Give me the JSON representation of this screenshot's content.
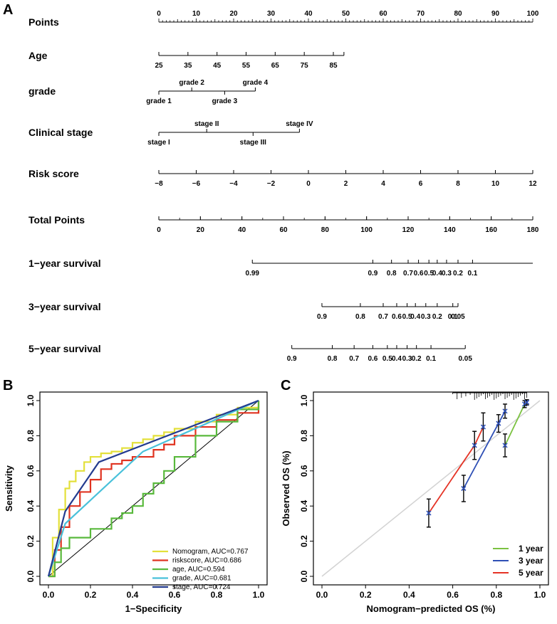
{
  "panel_labels": [
    "A",
    "B",
    "C"
  ],
  "chart_data": [
    {
      "type": "nomogram",
      "panel": "A",
      "points_range": [
        0,
        100
      ],
      "rows": [
        {
          "label": "Points",
          "kind": "points",
          "ticks": [
            {
              "t": "0",
              "v": 0
            },
            {
              "t": "10",
              "v": 10
            },
            {
              "t": "20",
              "v": 20
            },
            {
              "t": "30",
              "v": 30
            },
            {
              "t": "40",
              "v": 40
            },
            {
              "t": "50",
              "v": 50
            },
            {
              "t": "60",
              "v": 60
            },
            {
              "t": "70",
              "v": 70
            },
            {
              "t": "80",
              "v": 80
            },
            {
              "t": "90",
              "v": 90
            },
            {
              "t": "100",
              "v": 100
            }
          ]
        },
        {
          "label": "Age",
          "kind": "scale",
          "ticks": [
            {
              "t": "25",
              "v": 0
            },
            {
              "t": "35",
              "v": 7.78
            },
            {
              "t": "45",
              "v": 15.56
            },
            {
              "t": "55",
              "v": 23.33
            },
            {
              "t": "65",
              "v": 31.11
            },
            {
              "t": "75",
              "v": 38.89
            },
            {
              "t": "85",
              "v": 46.67
            }
          ],
          "axis_end": 49.5
        },
        {
          "label": "grade",
          "kind": "categorical",
          "ticks": [
            {
              "t": "grade 1",
              "v": 0,
              "pos": "below"
            },
            {
              "t": "grade 2",
              "v": 8.8,
              "pos": "above"
            },
            {
              "t": "grade 3",
              "v": 17.6,
              "pos": "below"
            },
            {
              "t": "grade 4",
              "v": 25.8,
              "pos": "above"
            }
          ]
        },
        {
          "label": "Clinical stage",
          "kind": "categorical",
          "ticks": [
            {
              "t": "stage I",
              "v": 0,
              "pos": "below"
            },
            {
              "t": "stage II",
              "v": 12.8,
              "pos": "above"
            },
            {
              "t": "stage III",
              "v": 25.2,
              "pos": "below"
            },
            {
              "t": "stage IV",
              "v": 37.6,
              "pos": "above"
            }
          ]
        },
        {
          "label": "Risk score",
          "kind": "scale",
          "ticks": [
            {
              "t": "−8",
              "v": 0
            },
            {
              "t": "−6",
              "v": 10
            },
            {
              "t": "−4",
              "v": 20
            },
            {
              "t": "−2",
              "v": 30
            },
            {
              "t": "0",
              "v": 40
            },
            {
              "t": "2",
              "v": 50
            },
            {
              "t": "4",
              "v": 60
            },
            {
              "t": "6",
              "v": 70
            },
            {
              "t": "8",
              "v": 80
            },
            {
              "t": "10",
              "v": 90
            },
            {
              "t": "12",
              "v": 100
            }
          ]
        },
        {
          "label": "Total Points",
          "kind": "total",
          "ticks": [
            {
              "t": "0",
              "v": 0
            },
            {
              "t": "20",
              "v": 20
            },
            {
              "t": "40",
              "v": 40
            },
            {
              "t": "60",
              "v": 60
            },
            {
              "t": "80",
              "v": 80
            },
            {
              "t": "100",
              "v": 100
            },
            {
              "t": "120",
              "v": 120
            },
            {
              "t": "140",
              "v": 140
            },
            {
              "t": "160",
              "v": 160
            },
            {
              "t": "180",
              "v": 180
            }
          ]
        },
        {
          "label": "1−year survival",
          "kind": "survival",
          "ticks": [
            {
              "t": "0.99",
              "v": 45
            },
            {
              "t": "0.9",
              "v": 103
            },
            {
              "t": "0.8",
              "v": 112
            },
            {
              "t": "0.7",
              "v": 120
            },
            {
              "t": "0.6",
              "v": 125
            },
            {
              "t": "0.5",
              "v": 130
            },
            {
              "t": "0.4",
              "v": 134
            },
            {
              "t": "0.3",
              "v": 138.5
            },
            {
              "t": "0.2",
              "v": 144
            },
            {
              "t": "0.1",
              "v": 151
            }
          ],
          "axis_end": 180
        },
        {
          "label": "3−year survival",
          "kind": "survival",
          "ticks": [
            {
              "t": "0.9",
              "v": 78.5
            },
            {
              "t": "0.8",
              "v": 97
            },
            {
              "t": "0.7",
              "v": 108
            },
            {
              "t": "0.6",
              "v": 114.5
            },
            {
              "t": "0.5",
              "v": 119.5
            },
            {
              "t": "0.4",
              "v": 123.5
            },
            {
              "t": "0.3",
              "v": 128.5
            },
            {
              "t": "0.2",
              "v": 134
            },
            {
              "t": "0.1",
              "v": 141.5
            },
            {
              "t": "0.05",
              "v": 144
            }
          ]
        },
        {
          "label": "5−year survival",
          "kind": "survival",
          "ticks": [
            {
              "t": "0.9",
              "v": 64
            },
            {
              "t": "0.8",
              "v": 83.5
            },
            {
              "t": "0.7",
              "v": 94
            },
            {
              "t": "0.6",
              "v": 103
            },
            {
              "t": "0.5",
              "v": 110
            },
            {
              "t": "0.4",
              "v": 114.5
            },
            {
              "t": "0.3",
              "v": 119.5
            },
            {
              "t": "0.2",
              "v": 124
            },
            {
              "t": "0.1",
              "v": 131
            },
            {
              "t": "0.05",
              "v": 147.5
            }
          ]
        }
      ]
    },
    {
      "type": "line",
      "panel": "B",
      "xlabel": "1−Specificity",
      "ylabel": "Sensitivity",
      "xlim": [
        0,
        1
      ],
      "ylim": [
        0,
        1
      ],
      "ticks": [
        "0.0",
        "0.2",
        "0.4",
        "0.6",
        "0.8",
        "1.0"
      ],
      "legend_position": "bottom-right",
      "series": [
        {
          "name": "Nomogram, AUC=0.767",
          "color": "#e3e03a",
          "x": [
            0,
            0.02,
            0.05,
            0.08,
            0.1,
            0.13,
            0.17,
            0.2,
            0.25,
            0.3,
            0.35,
            0.4,
            0.45,
            0.5,
            0.55,
            0.6,
            0.7,
            0.8,
            0.9,
            1.0
          ],
          "y": [
            0,
            0.22,
            0.38,
            0.5,
            0.54,
            0.6,
            0.65,
            0.68,
            0.7,
            0.71,
            0.73,
            0.76,
            0.78,
            0.8,
            0.82,
            0.84,
            0.88,
            0.92,
            0.96,
            1.0
          ]
        },
        {
          "name": "riskscore, AUC=0.686",
          "color": "#e03320",
          "x": [
            0,
            0.03,
            0.06,
            0.1,
            0.15,
            0.2,
            0.25,
            0.3,
            0.35,
            0.4,
            0.5,
            0.55,
            0.6,
            0.7,
            0.8,
            0.9,
            1.0
          ],
          "y": [
            0,
            0.15,
            0.28,
            0.4,
            0.48,
            0.55,
            0.61,
            0.64,
            0.66,
            0.68,
            0.72,
            0.75,
            0.8,
            0.85,
            0.89,
            0.93,
            1.0
          ]
        },
        {
          "name": "age, AUC=0.594",
          "color": "#59b93c",
          "x": [
            0,
            0.03,
            0.06,
            0.1,
            0.2,
            0.3,
            0.35,
            0.4,
            0.45,
            0.5,
            0.55,
            0.6,
            0.7,
            0.8,
            0.9,
            1.0
          ],
          "y": [
            0,
            0.08,
            0.16,
            0.22,
            0.27,
            0.33,
            0.36,
            0.4,
            0.47,
            0.53,
            0.6,
            0.68,
            0.8,
            0.88,
            0.95,
            1.0
          ]
        },
        {
          "name": "grade, AUC=0.681",
          "color": "#49c1da",
          "x": [
            0,
            0.08,
            0.45,
            1.0
          ],
          "y": [
            0,
            0.3,
            0.71,
            1.0
          ]
        },
        {
          "name": "stage, AUC=0.724",
          "color": "#233b8f",
          "x": [
            0,
            0.08,
            0.24,
            1.0
          ],
          "y": [
            0,
            0.37,
            0.65,
            1.0
          ]
        }
      ],
      "diagonal": true
    },
    {
      "type": "scatter",
      "panel": "C",
      "xlabel": "Nomogram−predicted OS (%)",
      "ylabel": "Observed OS (%)",
      "xlim": [
        0,
        1
      ],
      "ylim": [
        0,
        1
      ],
      "ticks": [
        "0.0",
        "0.2",
        "0.4",
        "0.6",
        "0.8",
        "1.0"
      ],
      "legend_position": "bottom-right",
      "series": [
        {
          "name": "1 year",
          "color": "#7bc241",
          "x": [
            0.84,
            0.93,
            0.94
          ],
          "y": [
            0.745,
            0.98,
            0.99
          ],
          "err": [
            0.065,
            0.02,
            0.015
          ]
        },
        {
          "name": "3 year",
          "color": "#2e4fb5",
          "x": [
            0.65,
            0.81,
            0.84
          ],
          "y": [
            0.5,
            0.87,
            0.94
          ],
          "err": [
            0.075,
            0.05,
            0.04
          ]
        },
        {
          "name": "5 year",
          "color": "#e53325",
          "x": [
            0.49,
            0.7,
            0.74
          ],
          "y": [
            0.36,
            0.745,
            0.85
          ],
          "err": [
            0.08,
            0.08,
            0.08
          ]
        }
      ],
      "rug": [
        0.6,
        0.62,
        0.64,
        0.66,
        0.68,
        0.7,
        0.71,
        0.72,
        0.73,
        0.74,
        0.75,
        0.76,
        0.77,
        0.78,
        0.79,
        0.8,
        0.81,
        0.82,
        0.83,
        0.84,
        0.85,
        0.86,
        0.87,
        0.88,
        0.89,
        0.9,
        0.91,
        0.92,
        0.93,
        0.94
      ],
      "diagonal": true
    }
  ]
}
